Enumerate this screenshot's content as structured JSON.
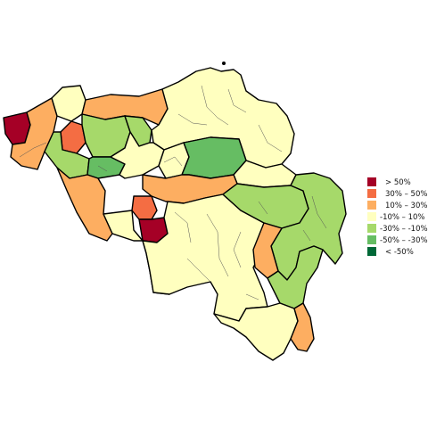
{
  "legend": {
    "items": [
      {
        "label": ">  50%",
        "color": "#a50026"
      },
      {
        "label": "30%  –   50%",
        "color": "#f46d43"
      },
      {
        "label": "10%  –   30%",
        "color": "#fdae61"
      },
      {
        "label": "-10%  –   10%",
        "color": "#ffffbf"
      },
      {
        "label": "-30%  –  -10%",
        "color": "#a6d96a"
      },
      {
        "label": "-50%  –  -30%",
        "color": "#66bd63"
      },
      {
        "label": "<  -50%",
        "color": "#006837"
      }
    ]
  },
  "regions": [
    {
      "id": "far-west",
      "category": 0
    },
    {
      "id": "west-coast",
      "category": 2
    },
    {
      "id": "coast-mid",
      "category": 3
    },
    {
      "id": "bruges-north",
      "category": 2
    },
    {
      "id": "roeselare",
      "category": 1
    },
    {
      "id": "ghent-west",
      "category": 4
    },
    {
      "id": "ghent-north",
      "category": 4
    },
    {
      "id": "kortrijk-east",
      "category": 4
    },
    {
      "id": "ghent-south",
      "category": 5
    },
    {
      "id": "antwerp",
      "category": 3
    },
    {
      "id": "aalst",
      "category": 3
    },
    {
      "id": "brussels-west",
      "category": 3
    },
    {
      "id": "limburg-hasselt",
      "category": 5
    },
    {
      "id": "limburg-north",
      "category": 3
    },
    {
      "id": "tournai",
      "category": 2
    },
    {
      "id": "flemish-brabant",
      "category": 2
    },
    {
      "id": "mons-north",
      "category": 1
    },
    {
      "id": "mons",
      "category": 0
    },
    {
      "id": "charleroi-west",
      "category": 2
    },
    {
      "id": "namur",
      "category": 3
    },
    {
      "id": "liege-west",
      "category": 4
    },
    {
      "id": "liege-east",
      "category": 4
    },
    {
      "id": "marche",
      "category": 2
    },
    {
      "id": "bastogne",
      "category": 4
    },
    {
      "id": "luxembourg-south",
      "category": 3
    },
    {
      "id": "arlon",
      "category": 2
    }
  ]
}
